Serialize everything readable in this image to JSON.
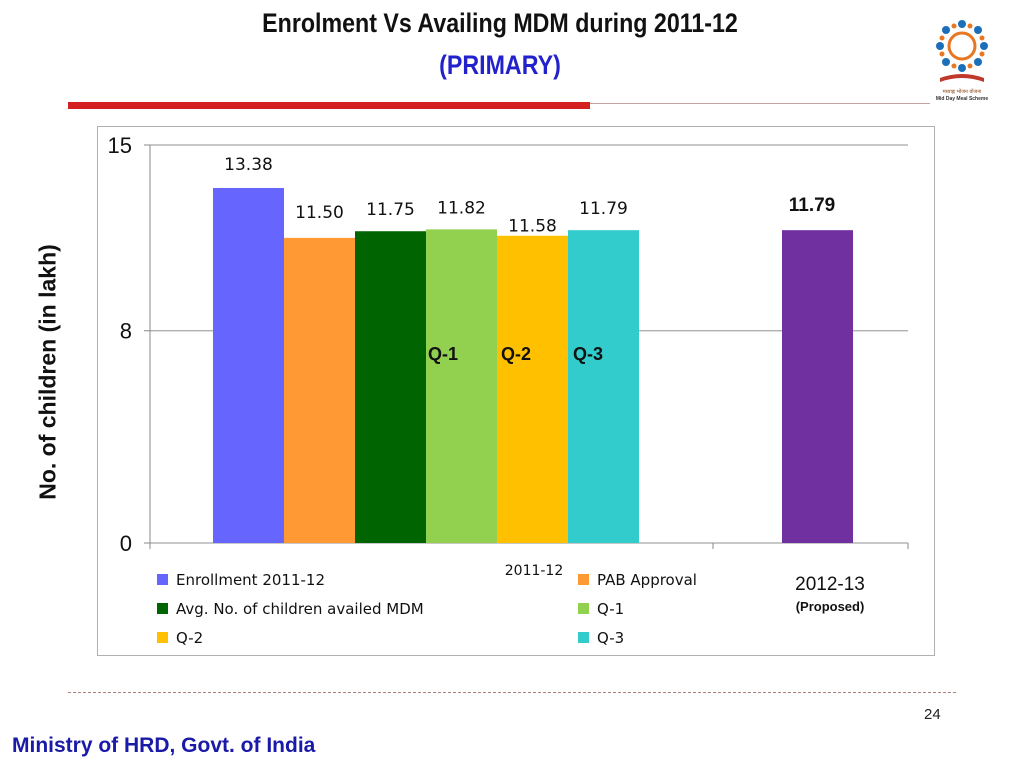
{
  "slide": {
    "title": "Enrolment Vs Availing MDM during  2011-12",
    "subtitle": "(PRIMARY)",
    "page_number": "24",
    "footer": "Ministry of HRD, Govt. of India",
    "logo_text": "मध्याह्न भोजन योजना",
    "logo_caption": "Mid Day Meal Scheme"
  },
  "colors": {
    "enrollment": "#6666ff",
    "pab": "#ff9933",
    "avg": "#006400",
    "q1": "#92d050",
    "q2": "#ffc000",
    "q3": "#33cccc",
    "proposed": "#7030a0",
    "title_blue": "#2222cc",
    "footer_blue": "#1a1aa8",
    "accent_red": "#d42020"
  },
  "chart_data": {
    "type": "bar",
    "ylabel": "No. of children (in lakh)",
    "ylim": [
      0,
      15
    ],
    "yticks": [
      "0",
      "8",
      "15"
    ],
    "grid": true,
    "legend_position": "bottom",
    "groups": [
      {
        "label": "2011-12",
        "bars": [
          {
            "series": "Enrollment 2011-12",
            "value": 13.38,
            "label": "13.38"
          },
          {
            "series": "PAB Approval",
            "value": 11.5,
            "label": "11.50"
          },
          {
            "series": "Avg. No. of children availed MDM",
            "value": 11.75,
            "label": "11.75"
          },
          {
            "series": "Q-1",
            "value": 11.82,
            "label": "11.82"
          },
          {
            "series": "Q-2",
            "value": 11.58,
            "label": "11.58"
          },
          {
            "series": "Q-3",
            "value": 11.79,
            "label": "11.79"
          }
        ]
      },
      {
        "label": "2012-13",
        "sublabel": "(Proposed)",
        "bars": [
          {
            "series": "2012-13 (Proposed)",
            "value": 11.79,
            "label": "11.79"
          }
        ]
      }
    ],
    "annotations": [
      "Q-1",
      "Q-2",
      "Q-3"
    ],
    "legend": [
      {
        "name": "Enrollment 2011-12",
        "color_key": "enrollment"
      },
      {
        "name": "PAB Approval",
        "color_key": "pab"
      },
      {
        "name": "Avg. No. of children availed MDM",
        "color_key": "avg"
      },
      {
        "name": "Q-1",
        "color_key": "q1"
      },
      {
        "name": "Q-2",
        "color_key": "q2"
      },
      {
        "name": "Q-3",
        "color_key": "q3"
      }
    ]
  }
}
